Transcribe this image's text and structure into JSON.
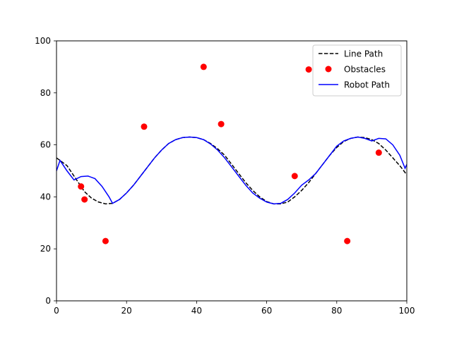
{
  "chart_data": {
    "type": "line",
    "title": "",
    "xlabel": "",
    "ylabel": "",
    "xlim": [
      0,
      100
    ],
    "ylim": [
      0,
      100
    ],
    "x_ticks": [
      "0",
      "20",
      "40",
      "60",
      "80",
      "100"
    ],
    "y_ticks": [
      "0",
      "20",
      "40",
      "60",
      "80",
      "100"
    ],
    "grid": false,
    "legend_position": "top-right",
    "series": [
      {
        "name": "Line Path",
        "kind": "line",
        "style": "dashed",
        "color": "#000000",
        "points": [
          [
            0,
            55
          ],
          [
            3,
            52
          ],
          [
            6,
            46
          ],
          [
            8,
            42
          ],
          [
            10,
            39.5
          ],
          [
            12,
            38
          ],
          [
            14,
            37.3
          ],
          [
            16,
            37.5
          ],
          [
            18,
            39
          ],
          [
            20,
            41.5
          ],
          [
            22,
            44.5
          ],
          [
            24,
            48
          ],
          [
            26,
            51.5
          ],
          [
            28,
            55
          ],
          [
            30,
            58
          ],
          [
            32,
            60.5
          ],
          [
            34,
            62
          ],
          [
            36,
            62.8
          ],
          [
            38,
            63
          ],
          [
            40,
            62.8
          ],
          [
            42,
            62
          ],
          [
            44,
            60.5
          ],
          [
            46,
            58.5
          ],
          [
            48,
            56
          ],
          [
            50,
            52.5
          ],
          [
            52,
            49
          ],
          [
            54,
            45.5
          ],
          [
            56,
            42.5
          ],
          [
            58,
            40
          ],
          [
            60,
            38.2
          ],
          [
            62,
            37.3
          ],
          [
            64,
            37.3
          ],
          [
            66,
            38
          ],
          [
            68,
            40
          ],
          [
            70,
            42.5
          ],
          [
            72,
            45.5
          ],
          [
            74,
            49
          ],
          [
            76,
            52.5
          ],
          [
            78,
            56
          ],
          [
            80,
            59
          ],
          [
            82,
            61.3
          ],
          [
            84,
            62.5
          ],
          [
            86,
            63
          ],
          [
            88,
            62.8
          ],
          [
            90,
            62
          ],
          [
            92,
            60.5
          ],
          [
            94,
            58
          ],
          [
            96,
            55
          ],
          [
            98,
            52
          ],
          [
            100,
            48.5
          ]
        ]
      },
      {
        "name": "Obstacles",
        "kind": "scatter",
        "color": "#ff0000",
        "points": [
          [
            7,
            44
          ],
          [
            8,
            39
          ],
          [
            14,
            23
          ],
          [
            25,
            67
          ],
          [
            42,
            90
          ],
          [
            47,
            68
          ],
          [
            68,
            48
          ],
          [
            72,
            89
          ],
          [
            83,
            23
          ],
          [
            92,
            57
          ]
        ]
      },
      {
        "name": "Robot Path",
        "kind": "line",
        "style": "solid",
        "color": "#0000ff",
        "points": [
          [
            0,
            50
          ],
          [
            1,
            54
          ],
          [
            3,
            50
          ],
          [
            5,
            46.5
          ],
          [
            7,
            47.8
          ],
          [
            9,
            48
          ],
          [
            11,
            47
          ],
          [
            13,
            44
          ],
          [
            15,
            40
          ],
          [
            16,
            37.5
          ],
          [
            18,
            39
          ],
          [
            20,
            41.5
          ],
          [
            22,
            44.5
          ],
          [
            24,
            48
          ],
          [
            26,
            51.5
          ],
          [
            28,
            55
          ],
          [
            30,
            58
          ],
          [
            32,
            60.5
          ],
          [
            34,
            62
          ],
          [
            36,
            62.8
          ],
          [
            38,
            63
          ],
          [
            40,
            62.8
          ],
          [
            42,
            62
          ],
          [
            44,
            60.3
          ],
          [
            46,
            58
          ],
          [
            48,
            55
          ],
          [
            50,
            51.5
          ],
          [
            52,
            48
          ],
          [
            54,
            44.5
          ],
          [
            56,
            41.5
          ],
          [
            58,
            39.5
          ],
          [
            60,
            38
          ],
          [
            62,
            37.3
          ],
          [
            64,
            37.5
          ],
          [
            66,
            39
          ],
          [
            68,
            41.5
          ],
          [
            70,
            44.5
          ],
          [
            72,
            46.5
          ],
          [
            74,
            49
          ],
          [
            76,
            52.5
          ],
          [
            78,
            56
          ],
          [
            80,
            59.5
          ],
          [
            82,
            61.5
          ],
          [
            84,
            62.5
          ],
          [
            86,
            63
          ],
          [
            88,
            62.5
          ],
          [
            90,
            61.5
          ],
          [
            92,
            62.5
          ],
          [
            94,
            62.3
          ],
          [
            96,
            60
          ],
          [
            98,
            56
          ],
          [
            99.5,
            51
          ],
          [
            100,
            52.5
          ]
        ]
      }
    ]
  }
}
